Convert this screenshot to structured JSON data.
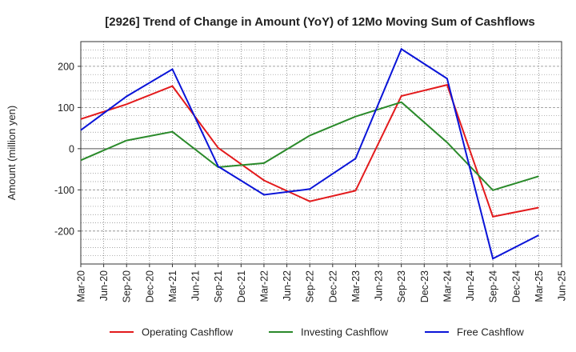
{
  "chart_data": {
    "type": "line",
    "title": "[2926]  Trend of Change in Amount (YoY) of 12Mo Moving Sum of Cashflows",
    "xlabel": "",
    "ylabel": "Amount (million yen)",
    "ylim": [
      -280,
      260
    ],
    "yticks": [
      200,
      100,
      0,
      -100,
      -200
    ],
    "grid": true,
    "categories": [
      "Mar-20",
      "Jun-20",
      "Sep-20",
      "Dec-20",
      "Mar-21",
      "Jun-21",
      "Sep-21",
      "Dec-21",
      "Mar-22",
      "Jun-22",
      "Sep-22",
      "Dec-22",
      "Mar-23",
      "Jun-23",
      "Sep-23",
      "Dec-23",
      "Mar-24",
      "Jun-24",
      "Sep-24",
      "Dec-24",
      "Mar-25",
      "Jun-25"
    ],
    "series": [
      {
        "name": "Operating Cashflow",
        "color": "#e31a1c",
        "values": [
          72,
          null,
          108,
          null,
          152,
          null,
          2,
          null,
          -77,
          null,
          -128,
          null,
          -102,
          null,
          128,
          null,
          155,
          null,
          -165,
          null,
          -143,
          null
        ]
      },
      {
        "name": "Investing Cashflow",
        "color": "#2a8a2a",
        "values": [
          -28,
          null,
          20,
          null,
          41,
          null,
          -45,
          null,
          -35,
          null,
          32,
          null,
          78,
          null,
          113,
          null,
          15,
          null,
          -101,
          null,
          -67,
          null
        ]
      },
      {
        "name": "Free Cashflow",
        "color": "#0a14d8",
        "values": [
          45,
          null,
          127,
          null,
          193,
          null,
          -43,
          null,
          -112,
          null,
          -98,
          null,
          -24,
          null,
          242,
          null,
          170,
          null,
          -267,
          null,
          -210,
          null
        ]
      }
    ],
    "legend": "bottom"
  }
}
